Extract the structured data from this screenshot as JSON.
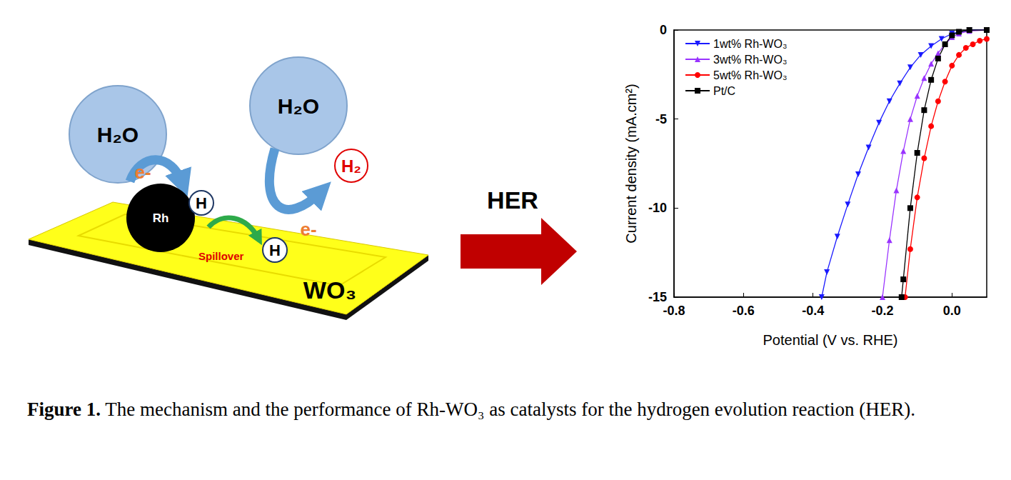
{
  "diagram": {
    "water_left": "H₂O",
    "water_right": "H₂O",
    "metal": "Rh",
    "adsorbed_h_1": "H",
    "adsorbed_h_2": "H",
    "electron_1": "e-",
    "electron_2": "e-",
    "spillover": "Spillover",
    "product": "H₂",
    "support": "WO₃"
  },
  "arrow_label": "HER",
  "chart_data": {
    "type": "line",
    "xlabel": "Potential (V vs. RHE)",
    "ylabel": "Current density (mA.cm²)",
    "xlim": [
      -0.8,
      0.1
    ],
    "xticks": [
      -0.8,
      -0.6,
      -0.4,
      -0.2,
      {
        "value": 0,
        "label": "0.0"
      }
    ],
    "ylim": [
      -15,
      0
    ],
    "yticks": [
      -15,
      -10,
      -5,
      0
    ],
    "grid": false,
    "legend": "top-left",
    "series": [
      {
        "name": "1wt% Rh-WO₃",
        "color": "#1a1aff",
        "marker": "triangle_down",
        "line_style": "solid",
        "x": [
          0.1,
          0.05,
          0.0,
          -0.03,
          -0.06,
          -0.09,
          -0.12,
          -0.15,
          -0.18,
          -0.21,
          -0.24,
          -0.27,
          -0.3,
          -0.33,
          -0.36,
          -0.375
        ],
        "values": [
          0,
          0,
          -0.2,
          -0.5,
          -0.9,
          -1.4,
          -2.1,
          -3.0,
          -4.0,
          -5.2,
          -6.6,
          -8.1,
          -9.8,
          -11.6,
          -13.6,
          -15
        ]
      },
      {
        "name": "3wt% Rh-WO₃",
        "color": "#9933ff",
        "marker": "triangle_up",
        "line_style": "solid",
        "x": [
          0.1,
          0.05,
          0.02,
          0.0,
          -0.02,
          -0.04,
          -0.06,
          -0.08,
          -0.1,
          -0.12,
          -0.14,
          -0.16,
          -0.18,
          -0.2
        ],
        "values": [
          0,
          -0.05,
          -0.2,
          -0.4,
          -0.8,
          -1.3,
          -1.9,
          -2.7,
          -3.7,
          -5.0,
          -6.8,
          -9.0,
          -11.8,
          -15
        ]
      },
      {
        "name": "5wt% Rh-WO₃",
        "color": "#ff0000",
        "marker": "circle",
        "line_style": "solid",
        "x": [
          0.1,
          0.08,
          0.06,
          0.04,
          0.02,
          0.0,
          -0.02,
          -0.04,
          -0.06,
          -0.08,
          -0.1,
          -0.12,
          -0.135
        ],
        "values": [
          -0.5,
          -0.6,
          -0.8,
          -1.0,
          -1.4,
          -2.0,
          -2.9,
          -4.0,
          -5.4,
          -7.2,
          -9.4,
          -12.3,
          -15
        ]
      },
      {
        "name": "Pt/C",
        "color": "#000000",
        "marker": "square",
        "line_style": "solid",
        "x": [
          0.1,
          0.05,
          0.02,
          0.0,
          -0.02,
          -0.04,
          -0.06,
          -0.08,
          -0.1,
          -0.12,
          -0.14,
          -0.145
        ],
        "values": [
          0,
          0,
          -0.1,
          -0.3,
          -0.8,
          -1.6,
          -2.8,
          -4.5,
          -6.9,
          -10.0,
          -14.0,
          -15
        ]
      }
    ]
  },
  "caption": {
    "label": "Figure 1.",
    "text": "The mechanism and the performance of Rh-WO₃ as catalysts for the hydrogen evolution reaction (HER)."
  }
}
